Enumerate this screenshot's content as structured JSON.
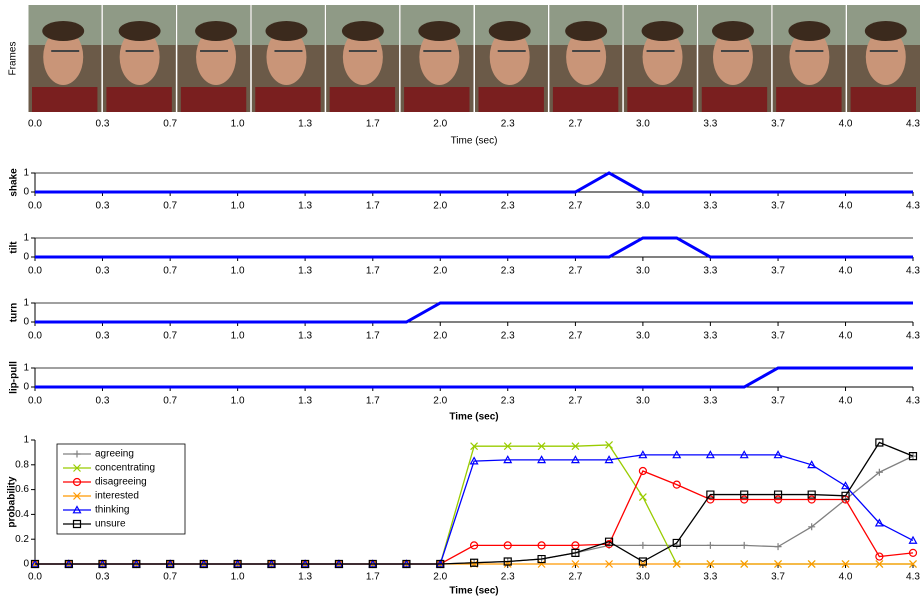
{
  "chart_data": [
    {
      "type": "frames",
      "ylabel": "Frames",
      "xlabel": "Time (sec)",
      "xlim": [
        0,
        4.333
      ],
      "xticks": [
        {
          "value": 0,
          "label": "0.0"
        },
        {
          "value": 0.333,
          "label": "0.3"
        },
        {
          "value": 0.667,
          "label": "0.7"
        },
        {
          "value": 1,
          "label": "1.0"
        },
        {
          "value": 1.333,
          "label": "1.3"
        },
        {
          "value": 1.667,
          "label": "1.7"
        },
        {
          "value": 2,
          "label": "2.0"
        },
        {
          "value": 2.333,
          "label": "2.3"
        },
        {
          "value": 2.667,
          "label": "2.7"
        },
        {
          "value": 3,
          "label": "3.0"
        },
        {
          "value": 3.333,
          "label": "3.3"
        },
        {
          "value": 3.667,
          "label": "3.7"
        },
        {
          "value": 4,
          "label": "4.0"
        },
        {
          "value": 4.333,
          "label": "4.3"
        }
      ]
    },
    {
      "type": "line",
      "ylabel": "shake",
      "xlim": [
        0,
        4.333
      ],
      "ylim": [
        0,
        1
      ],
      "yticks": [
        0,
        1
      ],
      "grid": true,
      "xticks": [
        {
          "value": 0,
          "label": "0.0"
        },
        {
          "value": 0.333,
          "label": "0.3"
        },
        {
          "value": 0.667,
          "label": "0.7"
        },
        {
          "value": 1,
          "label": "1.0"
        },
        {
          "value": 1.333,
          "label": "1.3"
        },
        {
          "value": 1.667,
          "label": "1.7"
        },
        {
          "value": 2,
          "label": "2.0"
        },
        {
          "value": 2.333,
          "label": "2.3"
        },
        {
          "value": 2.667,
          "label": "2.7"
        },
        {
          "value": 3,
          "label": "3.0"
        },
        {
          "value": 3.333,
          "label": "3.3"
        },
        {
          "value": 3.667,
          "label": "3.7"
        },
        {
          "value": 4,
          "label": "4.0"
        },
        {
          "value": 4.333,
          "label": "4.3"
        }
      ],
      "x": [
        0,
        2.667,
        2.833,
        3.0,
        4.333
      ],
      "series": [
        {
          "color": "#0000ff",
          "values": [
            0,
            0,
            1,
            0,
            0
          ]
        }
      ]
    },
    {
      "type": "line",
      "ylabel": "tilt",
      "xlim": [
        0,
        4.333
      ],
      "ylim": [
        0,
        1
      ],
      "yticks": [
        0,
        1
      ],
      "grid": true,
      "xticks": [
        {
          "value": 0,
          "label": "0.0"
        },
        {
          "value": 0.333,
          "label": "0.3"
        },
        {
          "value": 0.667,
          "label": "0.7"
        },
        {
          "value": 1,
          "label": "1.0"
        },
        {
          "value": 1.333,
          "label": "1.3"
        },
        {
          "value": 1.667,
          "label": "1.7"
        },
        {
          "value": 2,
          "label": "2.0"
        },
        {
          "value": 2.333,
          "label": "2.3"
        },
        {
          "value": 2.667,
          "label": "2.7"
        },
        {
          "value": 3,
          "label": "3.0"
        },
        {
          "value": 3.333,
          "label": "3.3"
        },
        {
          "value": 3.667,
          "label": "3.7"
        },
        {
          "value": 4,
          "label": "4.0"
        },
        {
          "value": 4.333,
          "label": "4.3"
        }
      ],
      "x": [
        0,
        2.833,
        3.0,
        3.167,
        3.333,
        4.333
      ],
      "series": [
        {
          "color": "#0000ff",
          "values": [
            0,
            0,
            1,
            1,
            0,
            0
          ]
        }
      ]
    },
    {
      "type": "line",
      "ylabel": "turn",
      "xlim": [
        0,
        4.333
      ],
      "ylim": [
        0,
        1
      ],
      "yticks": [
        0,
        1
      ],
      "grid": true,
      "xticks": [
        {
          "value": 0,
          "label": "0.0"
        },
        {
          "value": 0.333,
          "label": "0.3"
        },
        {
          "value": 0.667,
          "label": "0.7"
        },
        {
          "value": 1,
          "label": "1.0"
        },
        {
          "value": 1.333,
          "label": "1.3"
        },
        {
          "value": 1.667,
          "label": "1.7"
        },
        {
          "value": 2,
          "label": "2.0"
        },
        {
          "value": 2.333,
          "label": "2.3"
        },
        {
          "value": 2.667,
          "label": "2.7"
        },
        {
          "value": 3,
          "label": "3.0"
        },
        {
          "value": 3.333,
          "label": "3.3"
        },
        {
          "value": 3.667,
          "label": "3.7"
        },
        {
          "value": 4,
          "label": "4.0"
        },
        {
          "value": 4.333,
          "label": "4.3"
        }
      ],
      "x": [
        0,
        1.833,
        2.0,
        4.333
      ],
      "series": [
        {
          "color": "#0000ff",
          "values": [
            0,
            0,
            1,
            1
          ]
        }
      ]
    },
    {
      "type": "line",
      "ylabel": "lip-pull",
      "xlabel": "Time (sec)",
      "xlim": [
        0,
        4.333
      ],
      "ylim": [
        0,
        1
      ],
      "yticks": [
        0,
        1
      ],
      "grid": true,
      "xticks": [
        {
          "value": 0,
          "label": "0.0"
        },
        {
          "value": 0.333,
          "label": "0.3"
        },
        {
          "value": 0.667,
          "label": "0.7"
        },
        {
          "value": 1,
          "label": "1.0"
        },
        {
          "value": 1.333,
          "label": "1.3"
        },
        {
          "value": 1.667,
          "label": "1.7"
        },
        {
          "value": 2,
          "label": "2.0"
        },
        {
          "value": 2.333,
          "label": "2.3"
        },
        {
          "value": 2.667,
          "label": "2.7"
        },
        {
          "value": 3,
          "label": "3.0"
        },
        {
          "value": 3.333,
          "label": "3.3"
        },
        {
          "value": 3.667,
          "label": "3.7"
        },
        {
          "value": 4,
          "label": "4.0"
        },
        {
          "value": 4.333,
          "label": "4.3"
        }
      ],
      "x": [
        0,
        3.5,
        3.667,
        4.333
      ],
      "series": [
        {
          "color": "#0000ff",
          "values": [
            0,
            0,
            1,
            1
          ]
        }
      ]
    },
    {
      "type": "line",
      "ylabel": "probability",
      "xlabel": "Time (sec)",
      "xlim": [
        0,
        4.333
      ],
      "ylim": [
        0,
        1
      ],
      "yticks": [
        0,
        0.2,
        0.4,
        0.6,
        0.8,
        1
      ],
      "grid": false,
      "legend": "upper-left",
      "xticks": [
        {
          "value": 0,
          "label": "0.0"
        },
        {
          "value": 0.333,
          "label": "0.3"
        },
        {
          "value": 0.667,
          "label": "0.7"
        },
        {
          "value": 1,
          "label": "1.0"
        },
        {
          "value": 1.333,
          "label": "1.3"
        },
        {
          "value": 1.667,
          "label": "1.7"
        },
        {
          "value": 2,
          "label": "2.0"
        },
        {
          "value": 2.333,
          "label": "2.3"
        },
        {
          "value": 2.667,
          "label": "2.7"
        },
        {
          "value": 3,
          "label": "3.0"
        },
        {
          "value": 3.333,
          "label": "3.3"
        },
        {
          "value": 3.667,
          "label": "3.7"
        },
        {
          "value": 4,
          "label": "4.0"
        },
        {
          "value": 4.333,
          "label": "4.3"
        }
      ],
      "x": [
        0,
        0.167,
        0.333,
        0.5,
        0.667,
        0.833,
        1,
        1.167,
        1.333,
        1.5,
        1.667,
        1.833,
        2,
        2.167,
        2.333,
        2.5,
        2.667,
        2.833,
        3,
        3.167,
        3.333,
        3.5,
        3.667,
        3.833,
        4,
        4.167,
        4.333
      ],
      "series": [
        {
          "name": "agreeing",
          "color": "#808080",
          "marker": "plus",
          "values": [
            0,
            0,
            0,
            0,
            0,
            0,
            0,
            0,
            0,
            0,
            0,
            0,
            0,
            0.01,
            0.02,
            0.04,
            0.09,
            0.15,
            0.15,
            0.15,
            0.15,
            0.15,
            0.14,
            0.3,
            0.52,
            0.74,
            0.87
          ]
        },
        {
          "name": "concentrating",
          "color": "#99cc00",
          "marker": "cross",
          "values": [
            0,
            0,
            0,
            0,
            0,
            0,
            0,
            0,
            0,
            0,
            0,
            0,
            0,
            0.95,
            0.95,
            0.95,
            0.95,
            0.96,
            0.54,
            0,
            0,
            0,
            0,
            0,
            0,
            0,
            0
          ]
        },
        {
          "name": "disagreeing",
          "color": "#ff0000",
          "marker": "circle",
          "values": [
            0,
            0,
            0,
            0,
            0,
            0,
            0,
            0,
            0,
            0,
            0,
            0,
            0,
            0.15,
            0.15,
            0.15,
            0.15,
            0.16,
            0.75,
            0.64,
            0.52,
            0.52,
            0.52,
            0.52,
            0.52,
            0.06,
            0.09
          ]
        },
        {
          "name": "interested",
          "color": "#ff9900",
          "marker": "cross",
          "values": [
            0,
            0,
            0,
            0,
            0,
            0,
            0,
            0,
            0,
            0,
            0,
            0,
            0,
            0,
            0,
            0,
            0,
            0,
            0,
            0,
            0,
            0,
            0,
            0,
            0,
            0,
            0
          ]
        },
        {
          "name": "thinking",
          "color": "#0000ff",
          "marker": "triangle",
          "values": [
            0,
            0,
            0,
            0,
            0,
            0,
            0,
            0,
            0,
            0,
            0,
            0,
            0,
            0.83,
            0.84,
            0.84,
            0.84,
            0.84,
            0.88,
            0.88,
            0.88,
            0.88,
            0.88,
            0.8,
            0.63,
            0.33,
            0.19
          ]
        },
        {
          "name": "unsure",
          "color": "#000000",
          "marker": "square",
          "values": [
            0,
            0,
            0,
            0,
            0,
            0,
            0,
            0,
            0,
            0,
            0,
            0,
            0,
            0.01,
            0.02,
            0.04,
            0.09,
            0.18,
            0.02,
            0.17,
            0.56,
            0.56,
            0.56,
            0.56,
            0.55,
            0.98,
            0.87
          ]
        }
      ]
    }
  ]
}
